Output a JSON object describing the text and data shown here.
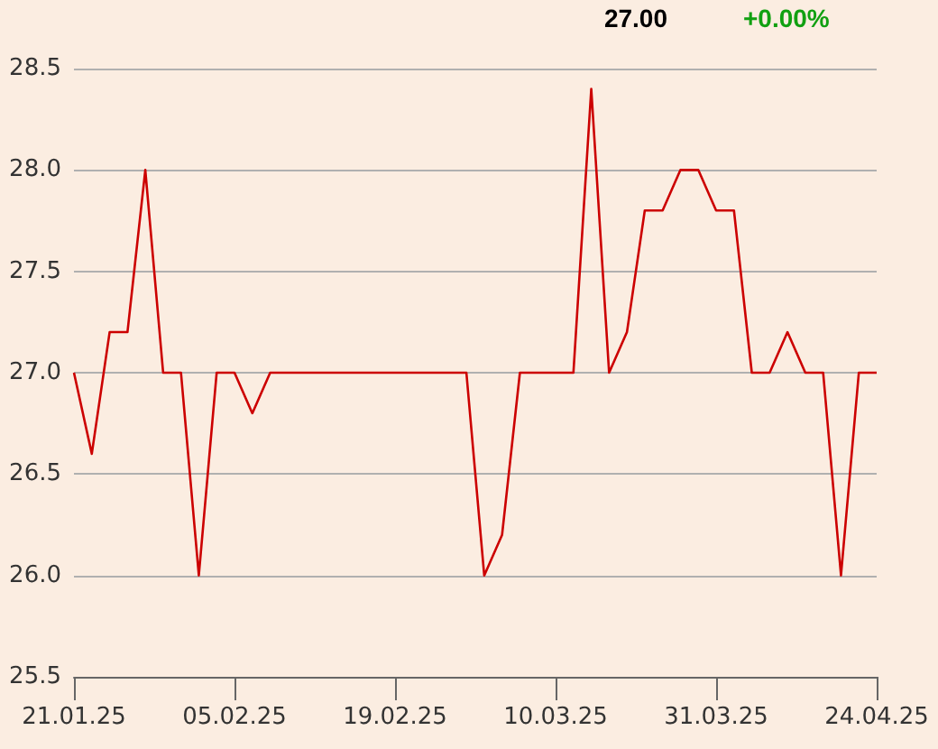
{
  "chart_data": {
    "type": "line",
    "categories": [
      "21.01.25",
      null,
      null,
      null,
      null,
      null,
      null,
      null,
      null,
      "05.02.25",
      null,
      null,
      null,
      null,
      null,
      null,
      null,
      null,
      "19.02.25",
      null,
      null,
      null,
      null,
      null,
      null,
      null,
      null,
      "10.03.25",
      null,
      null,
      null,
      null,
      null,
      null,
      null,
      null,
      "31.03.25",
      null,
      null,
      null,
      null,
      null,
      null,
      null,
      null,
      "24.04.25"
    ],
    "series": [
      {
        "color": "#cc0000",
        "values": [
          27.0,
          26.6,
          27.2,
          27.2,
          28.0,
          27.0,
          27.0,
          26.0,
          27.0,
          27.0,
          26.8,
          27.0,
          27.0,
          27.0,
          27.0,
          27.0,
          27.0,
          27.0,
          27.0,
          27.0,
          27.0,
          27.0,
          27.0,
          26.0,
          26.2,
          27.0,
          27.0,
          27.0,
          27.0,
          28.4,
          27.0,
          27.2,
          27.8,
          27.8,
          28.0,
          28.0,
          27.8,
          27.8,
          27.0,
          27.0,
          27.2,
          27.0,
          27.0,
          26.0,
          27.0,
          27.0
        ]
      }
    ],
    "ylim": [
      25.5,
      28.5
    ],
    "yticks": [
      25.5,
      {
        "value": 26,
        "label": "26.0"
      },
      26.5,
      {
        "value": 27,
        "label": "27.0"
      },
      27.5,
      {
        "value": 28,
        "label": "28.0"
      },
      28.5
    ],
    "grid": "y",
    "marker": "none",
    "line_style": "solid",
    "annotations": [
      "27.00",
      "+0.00%"
    ]
  }
}
